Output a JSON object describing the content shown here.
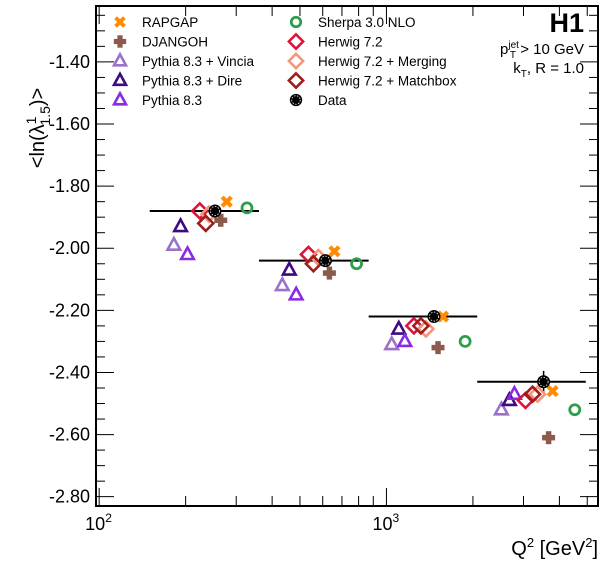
{
  "chart_data": {
    "type": "scatter",
    "title": "",
    "experiment_label": "H1",
    "annotations": {
      "cut_line1_main": "p",
      "cut_line1_sup": "jet",
      "cut_line1_sub": "T",
      "cut_line1_rest": " > 10 GeV",
      "cut_line2_main": "k",
      "cut_line2_sub": "T",
      "cut_line2_rest": ", R = 1.0"
    },
    "xlabel": {
      "main": "Q",
      "sup1": "2",
      "mid": " [GeV",
      "sup2": "2",
      "end": "]"
    },
    "ylabel": {
      "pre": "<ln(λ",
      "sup": "1",
      "sub": "1.5",
      "post": ")>"
    },
    "xscale": "log",
    "xlim": [
      97.5,
      5450
    ],
    "ylim": [
      -2.83,
      -1.22
    ],
    "grid": false,
    "legend_position": "top-left",
    "x_tick_labels": [
      {
        "value": 100,
        "base": "10",
        "exp": "2"
      },
      {
        "value": 1000,
        "base": "10",
        "exp": "3"
      }
    ],
    "y_ticks": [
      -1.4,
      -1.6,
      -1.8,
      -2.0,
      -2.2,
      -2.4,
      -2.6,
      -2.8
    ],
    "y_tick_labels": [
      "-1.40",
      "-1.60",
      "-1.80",
      "-2.00",
      "-2.20",
      "-2.40",
      "-2.60",
      "-2.80"
    ],
    "bins": [
      [
        150,
        360
      ],
      [
        360,
        867
      ],
      [
        867,
        2070
      ],
      [
        2070,
        4940
      ]
    ],
    "data": {
      "name": "Data",
      "x": [
        253,
        613,
        1464,
        3524
      ],
      "y": [
        -1.88,
        -2.04,
        -2.22,
        -2.43
      ],
      "yerr": [
        0.005,
        0.008,
        0.012,
        0.035
      ],
      "color": "#000000"
    },
    "series": [
      {
        "name": "RAPGAP",
        "marker": "cross-x",
        "color": "#ff8c00",
        "x": [
          278,
          659,
          1574,
          3789
        ],
        "y": [
          -1.85,
          -2.01,
          -2.22,
          -2.46
        ]
      },
      {
        "name": "DJANGOH",
        "marker": "cross",
        "color": "#8c5a4c",
        "x": [
          265,
          633,
          1512,
          3668
        ],
        "y": [
          -1.91,
          -2.08,
          -2.32,
          -2.61
        ]
      },
      {
        "name": "Pythia 8.3 + Vincia",
        "marker": "triangle",
        "color": "#9b72c8",
        "x": [
          182,
          434,
          1043,
          2512
        ],
        "y": [
          -1.99,
          -2.12,
          -2.31,
          -2.52
        ]
      },
      {
        "name": "Pythia 8.3 + Dire",
        "marker": "triangle",
        "color": "#3c0a82",
        "x": [
          192,
          459,
          1104,
          2679
        ],
        "y": [
          -1.93,
          -2.07,
          -2.26,
          -2.49
        ]
      },
      {
        "name": "Pythia 8.3",
        "marker": "triangle",
        "color": "#8a2be2",
        "x": [
          203,
          485,
          1159,
          2789
        ],
        "y": [
          -2.02,
          -2.15,
          -2.3,
          -2.47
        ]
      },
      {
        "name": "Sherpa 3.0 NLO",
        "marker": "circle",
        "color": "#2e9e4a",
        "x": [
          327,
          787,
          1879,
          4524
        ],
        "y": [
          -1.87,
          -2.05,
          -2.3,
          -2.52
        ]
      },
      {
        "name": "Herwig 7.2",
        "marker": "diamond",
        "color": "#dc143c",
        "x": [
          224,
          535,
          1246,
          3048
        ],
        "y": [
          -1.88,
          -2.02,
          -2.25,
          -2.49
        ]
      },
      {
        "name": "Herwig 7.2 + Merging",
        "marker": "diamond",
        "color": "#f4967a",
        "x": [
          241,
          580,
          1372,
          3357
        ],
        "y": [
          -1.89,
          -2.03,
          -2.26,
          -2.47
        ]
      },
      {
        "name": "Herwig 7.2 + Matchbox",
        "marker": "diamond",
        "color": "#a01c1c",
        "x": [
          235,
          557,
          1318,
          3225
        ],
        "y": [
          -1.92,
          -2.05,
          -2.25,
          -2.47
        ]
      }
    ],
    "legend": {
      "column1": [
        {
          "label": "RAPGAP",
          "marker": "cross-x",
          "color": "#ff8c00"
        },
        {
          "label": "DJANGOH",
          "marker": "cross",
          "color": "#8c5a4c"
        },
        {
          "label": "Pythia 8.3 + Vincia",
          "marker": "triangle",
          "color": "#9b72c8"
        },
        {
          "label": "Pythia 8.3 + Dire",
          "marker": "triangle",
          "color": "#3c0a82"
        },
        {
          "label": "Pythia 8.3",
          "marker": "triangle",
          "color": "#8a2be2"
        }
      ],
      "column2": [
        {
          "label": "Sherpa 3.0 NLO",
          "marker": "circle",
          "color": "#2e9e4a"
        },
        {
          "label": "Herwig 7.2",
          "marker": "diamond",
          "color": "#dc143c"
        },
        {
          "label": "Herwig 7.2 + Merging",
          "marker": "diamond",
          "color": "#f4967a"
        },
        {
          "label": "Herwig 7.2 + Matchbox",
          "marker": "diamond",
          "color": "#a01c1c"
        },
        {
          "label": "Data",
          "marker": "data",
          "color": "#000000"
        }
      ]
    }
  }
}
